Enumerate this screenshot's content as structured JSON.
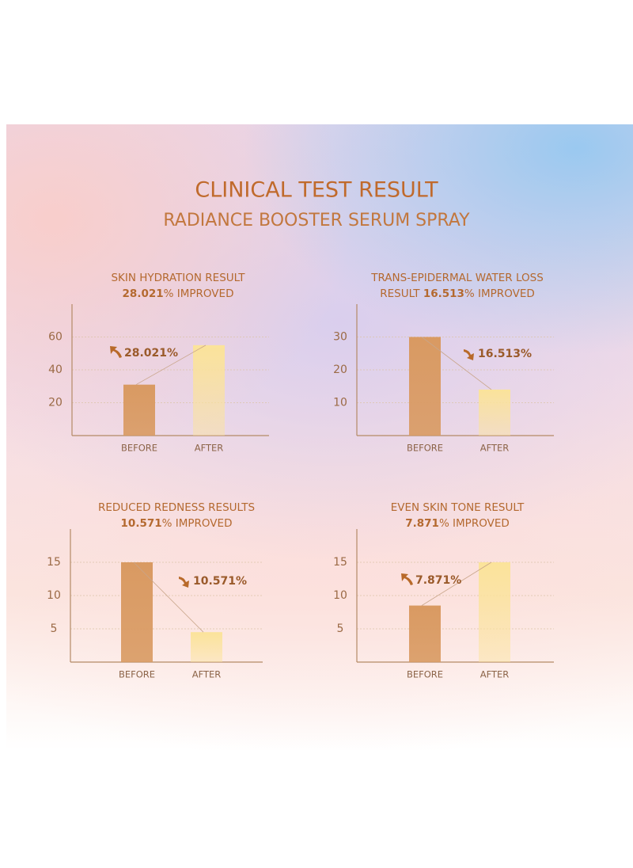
{
  "title": "CLINICAL TEST RESULT",
  "subtitle": "RADIANCE BOOSTER SERUM SPRAY",
  "chart_data": [
    {
      "type": "bar",
      "title": "SKIN HYDRATION RESULT",
      "subtitle": [
        {
          "text": "28.021",
          "bold": true
        },
        {
          "text": "% IMPROVED"
        }
      ],
      "annotation": "28.021%",
      "trend": "up",
      "categories": [
        "BEFORE",
        "AFTER"
      ],
      "values": [
        31,
        55
      ],
      "colors": [
        "#d99a62",
        "#fbe39a"
      ],
      "ylim": [
        0,
        80
      ],
      "yticks": [
        20,
        40,
        60
      ],
      "grid": true
    },
    {
      "type": "bar",
      "title": "TRANS-EPIDERMAL WATER LOSS",
      "subtitle": [
        {
          "text": "RESULT "
        },
        {
          "text": "16.513",
          "bold": true
        },
        {
          "text": "% IMPROVED"
        }
      ],
      "annotation": "16.513%",
      "trend": "down",
      "categories": [
        "BEFORE",
        "AFTER"
      ],
      "values": [
        30,
        14
      ],
      "colors": [
        "#d99a62",
        "#fbe39a"
      ],
      "ylim": [
        0,
        40
      ],
      "yticks": [
        10,
        20,
        30
      ],
      "grid": true
    },
    {
      "type": "bar",
      "title": "REDUCED REDNESS RESULTS",
      "subtitle": [
        {
          "text": "10.571",
          "bold": true
        },
        {
          "text": "% IMPROVED"
        }
      ],
      "annotation": "10.571%",
      "trend": "down",
      "categories": [
        "BEFORE",
        "AFTER"
      ],
      "values": [
        15,
        4.5
      ],
      "colors": [
        "#d99a62",
        "#fbe39a"
      ],
      "ylim": [
        0,
        20
      ],
      "yticks": [
        5,
        10,
        15
      ],
      "grid": true
    },
    {
      "type": "bar",
      "title": "EVEN SKIN TONE RESULT",
      "subtitle": [
        {
          "text": "7.871",
          "bold": true
        },
        {
          "text": "% IMPROVED"
        }
      ],
      "annotation": "7.871%",
      "trend": "up",
      "categories": [
        "BEFORE",
        "AFTER"
      ],
      "values": [
        8.5,
        15
      ],
      "colors": [
        "#d99a62",
        "#fbe39a"
      ],
      "ylim": [
        0,
        20
      ],
      "yticks": [
        5,
        10,
        15
      ],
      "grid": true
    }
  ]
}
